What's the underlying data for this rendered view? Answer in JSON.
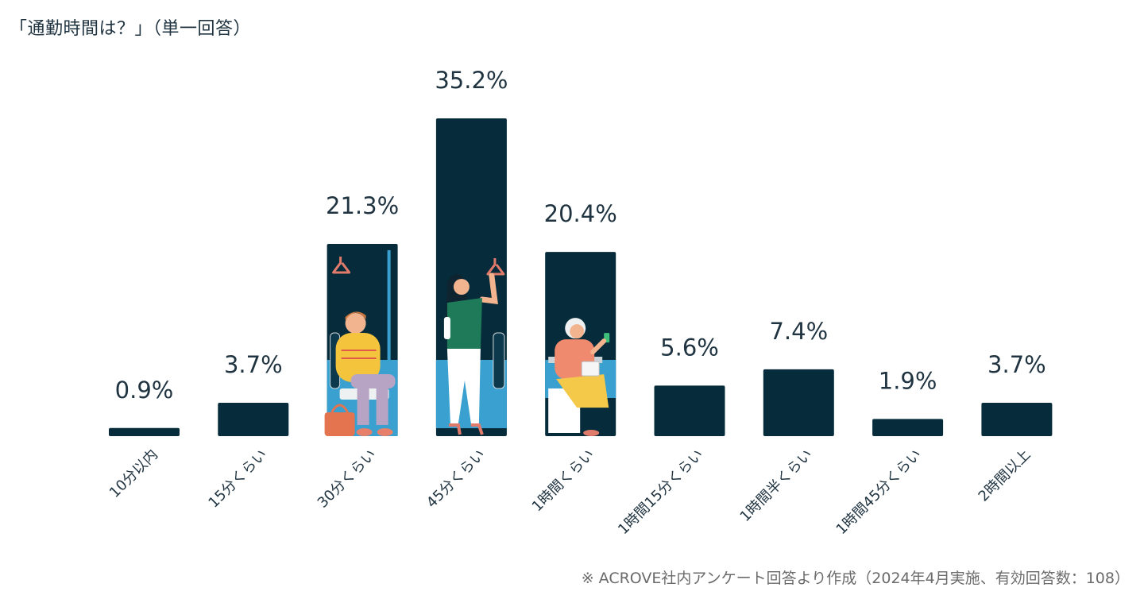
{
  "chart_data": {
    "type": "bar",
    "title": "「通勤時間は？」（単一回答）",
    "categories": [
      "10分以内",
      "15分くらい",
      "30分くらい",
      "45分くらい",
      "1時間くらい",
      "1時間15分くらい",
      "1時間半くらい",
      "1時間45分くらい",
      "2時間以上"
    ],
    "values": [
      0.9,
      3.7,
      21.3,
      35.2,
      20.4,
      5.6,
      7.4,
      1.9,
      3.7
    ],
    "value_labels": [
      "0.9%",
      "3.7%",
      "21.3%",
      "35.2%",
      "20.4%",
      "5.6%",
      "7.4%",
      "1.9%",
      "3.7%"
    ],
    "unit": "%",
    "ylim": [
      0,
      40
    ],
    "grid": false,
    "footnote": "※ ACROVE社内アンケート回答より作成（2024年4月実施、有効回答数：108）",
    "colors": {
      "bar": "#062c3b",
      "accent_blue": "#3aa0cf",
      "text": "#1f3340",
      "footnote": "#6b6b6b"
    },
    "illustrations": [
      "seated-man-icon",
      "standing-woman-icon",
      "seated-woman-phone-icon"
    ]
  }
}
